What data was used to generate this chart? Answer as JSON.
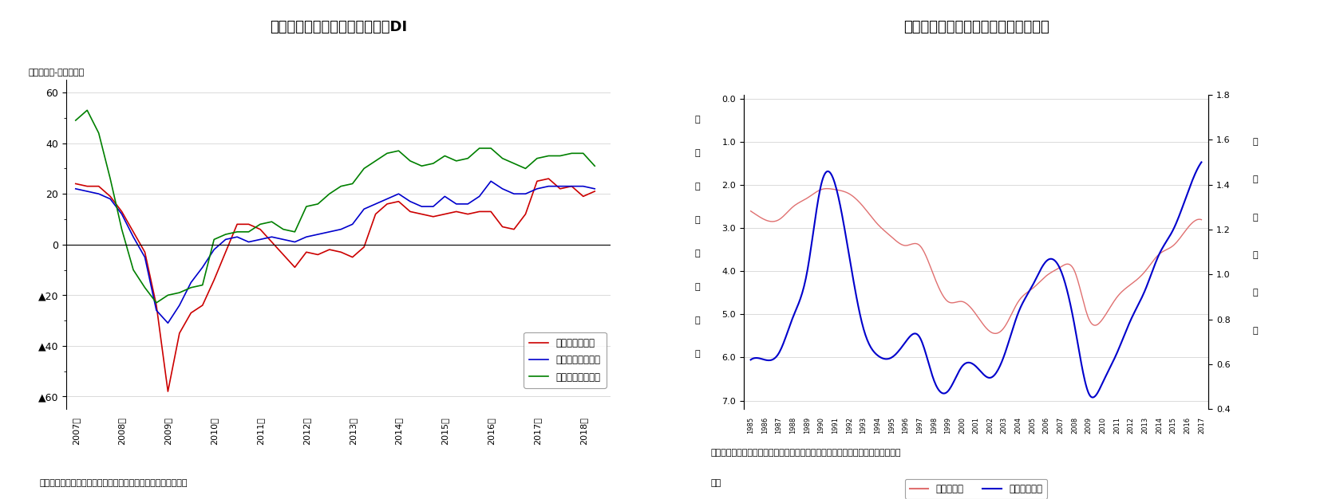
{
  "chart1": {
    "title": "図表－３　日銀短観　業況判断DI",
    "ylabel_top": "（「良い」-「悪い」）",
    "source": "出所）日本銀行の公表データをもとにニッセイ基礎研究所作成",
    "xlabels": [
      "2007年",
      "2008年",
      "2009年",
      "2010年",
      "2011年",
      "2012年",
      "2013年",
      "2014年",
      "2015年",
      "2016年",
      "2017年",
      "2018年"
    ],
    "xtick_positions": [
      2007,
      2008,
      2009,
      2010,
      2011,
      2012,
      2013,
      2014,
      2015,
      2016,
      2017,
      2018
    ],
    "ylim": [
      -65,
      65
    ],
    "ytick_vals": [
      60,
      40,
      20,
      0,
      -20,
      -40,
      -60
    ],
    "ytick_labels": [
      "60",
      "40",
      "20",
      "0",
      "▲20",
      "▲40",
      "▲60"
    ],
    "legend_labels": [
      "大企業・製造業",
      "大企業・非製造業",
      "大企業・不動産業"
    ],
    "colors": [
      "#cc0000",
      "#0000cc",
      "#008000"
    ],
    "mfg_x": [
      2007.0,
      2007.25,
      2007.5,
      2007.75,
      2008.0,
      2008.25,
      2008.5,
      2008.75,
      2009.0,
      2009.25,
      2009.5,
      2009.75,
      2010.0,
      2010.25,
      2010.5,
      2010.75,
      2011.0,
      2011.25,
      2011.5,
      2011.75,
      2012.0,
      2012.25,
      2012.5,
      2012.75,
      2013.0,
      2013.25,
      2013.5,
      2013.75,
      2014.0,
      2014.25,
      2014.5,
      2014.75,
      2015.0,
      2015.25,
      2015.5,
      2015.75,
      2016.0,
      2016.25,
      2016.5,
      2016.75,
      2017.0,
      2017.25,
      2017.5,
      2017.75,
      2018.0,
      2018.25
    ],
    "mfg_y": [
      24,
      23,
      23,
      19,
      13,
      5,
      -3,
      -24,
      -58,
      -35,
      -27,
      -24,
      -14,
      -3,
      8,
      8,
      6,
      1,
      -4,
      -9,
      -3,
      -4,
      -2,
      -3,
      -5,
      -1,
      12,
      16,
      17,
      13,
      12,
      11,
      12,
      13,
      12,
      13,
      13,
      7,
      6,
      12,
      25,
      26,
      22,
      23,
      19,
      21
    ],
    "nmfg_x": [
      2007.0,
      2007.25,
      2007.5,
      2007.75,
      2008.0,
      2008.25,
      2008.5,
      2008.75,
      2009.0,
      2009.25,
      2009.5,
      2009.75,
      2010.0,
      2010.25,
      2010.5,
      2010.75,
      2011.0,
      2011.25,
      2011.5,
      2011.75,
      2012.0,
      2012.25,
      2012.5,
      2012.75,
      2013.0,
      2013.25,
      2013.5,
      2013.75,
      2014.0,
      2014.25,
      2014.5,
      2014.75,
      2015.0,
      2015.25,
      2015.5,
      2015.75,
      2016.0,
      2016.25,
      2016.5,
      2016.75,
      2017.0,
      2017.25,
      2017.5,
      2017.75,
      2018.0,
      2018.25
    ],
    "nmfg_y": [
      22,
      21,
      20,
      18,
      12,
      3,
      -5,
      -26,
      -31,
      -24,
      -15,
      -9,
      -2,
      2,
      3,
      1,
      2,
      3,
      2,
      1,
      3,
      4,
      5,
      6,
      8,
      14,
      16,
      18,
      20,
      17,
      15,
      15,
      19,
      16,
      16,
      19,
      25,
      22,
      20,
      20,
      22,
      23,
      23,
      23,
      23,
      22
    ],
    "re_x": [
      2007.0,
      2007.25,
      2007.5,
      2007.75,
      2008.0,
      2008.25,
      2008.5,
      2008.75,
      2009.0,
      2009.25,
      2009.5,
      2009.75,
      2010.0,
      2010.25,
      2010.5,
      2010.75,
      2011.0,
      2011.25,
      2011.5,
      2011.75,
      2012.0,
      2012.25,
      2012.5,
      2012.75,
      2013.0,
      2013.25,
      2013.5,
      2013.75,
      2014.0,
      2014.25,
      2014.5,
      2014.75,
      2015.0,
      2015.25,
      2015.5,
      2015.75,
      2016.0,
      2016.25,
      2016.5,
      2016.75,
      2017.0,
      2017.25,
      2017.5,
      2017.75,
      2018.0,
      2018.25
    ],
    "re_y": [
      49,
      53,
      44,
      26,
      6,
      -10,
      -17,
      -23,
      -20,
      -19,
      -17,
      -16,
      2,
      4,
      5,
      5,
      8,
      9,
      6,
      5,
      15,
      16,
      20,
      23,
      24,
      30,
      33,
      36,
      37,
      33,
      31,
      32,
      35,
      33,
      34,
      38,
      38,
      34,
      32,
      30,
      34,
      35,
      35,
      36,
      36,
      31
    ]
  },
  "chart2": {
    "title": "図表－４　完全失業率と有効求人倍率",
    "ylabel_left_chars": [
      "完",
      "全",
      "失",
      "業",
      "率",
      "（",
      "％",
      "）"
    ],
    "ylabel_right_chars": [
      "有",
      "効",
      "求",
      "人",
      "倍",
      "率"
    ],
    "source_line1": "（出所）総務省統計局、厚生労働省の公表データをもとにニッセイ基礎研究所が",
    "source_line2": "作成",
    "xlabels": [
      "1985",
      "1986",
      "1987",
      "1988",
      "1989",
      "1990",
      "1991",
      "1992",
      "1993",
      "1994",
      "1995",
      "1996",
      "1997",
      "1998",
      "1999",
      "2000",
      "2001",
      "2002",
      "2003",
      "2004",
      "2005",
      "2006",
      "2007",
      "2008",
      "2009",
      "2010",
      "2011",
      "2012",
      "2013",
      "2014",
      "2015",
      "2016",
      "2017"
    ],
    "ylim_left": [
      0.0,
      7.0
    ],
    "ylim_right": [
      0.4,
      1.8
    ],
    "ytick_vals_left": [
      0.0,
      1.0,
      2.0,
      3.0,
      4.0,
      5.0,
      6.0,
      7.0
    ],
    "ytick_labels_left": [
      "0.0",
      "1.0",
      "2.0",
      "3.0",
      "4.0",
      "5.0",
      "6.0",
      "7.0"
    ],
    "ytick_vals_right": [
      0.4,
      0.6,
      0.8,
      1.0,
      1.2,
      1.4,
      1.6,
      1.8
    ],
    "ytick_labels_right": [
      "0.4",
      "0.6",
      "0.8",
      "1.0",
      "1.2",
      "1.4",
      "1.6",
      "1.8"
    ],
    "legend_labels": [
      "完全失業率",
      "有効求人倍率"
    ],
    "colors": [
      "#e07070",
      "#0000cc"
    ],
    "years": [
      1985,
      1986,
      1987,
      1988,
      1989,
      1990,
      1991,
      1992,
      1993,
      1994,
      1995,
      1996,
      1997,
      1998,
      1999,
      2000,
      2001,
      2002,
      2003,
      2004,
      2005,
      2006,
      2007,
      2008,
      2009,
      2010,
      2011,
      2012,
      2013,
      2014,
      2015,
      2016,
      2017
    ],
    "unemployment": [
      2.6,
      2.8,
      2.8,
      2.5,
      2.3,
      2.1,
      2.1,
      2.2,
      2.5,
      2.9,
      3.2,
      3.4,
      3.4,
      4.1,
      4.7,
      4.7,
      5.0,
      5.4,
      5.3,
      4.7,
      4.4,
      4.1,
      3.9,
      4.0,
      5.1,
      5.1,
      4.6,
      4.3,
      4.0,
      3.6,
      3.4,
      3.0,
      2.8
    ],
    "job_ratio": [
      0.62,
      0.62,
      0.65,
      0.81,
      1.01,
      1.4,
      1.4,
      1.08,
      0.76,
      0.64,
      0.63,
      0.7,
      0.72,
      0.53,
      0.48,
      0.59,
      0.59,
      0.54,
      0.64,
      0.83,
      0.95,
      1.06,
      1.02,
      0.77,
      0.47,
      0.52,
      0.65,
      0.8,
      0.93,
      1.09,
      1.2,
      1.36,
      1.5
    ]
  }
}
